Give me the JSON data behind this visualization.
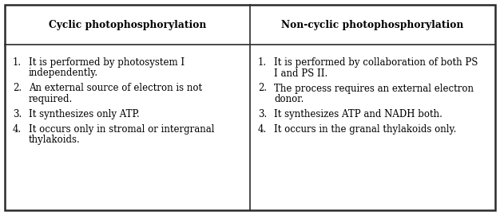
{
  "col1_header": "Cyclic photophosphorylation",
  "col2_header": "Non-cyclic photophosphorylation",
  "col1_items": [
    {
      "num": "1.",
      "line1": "It is performed by photosystem I",
      "line2": "independently."
    },
    {
      "num": "2.",
      "line1": "An external source of electron is not",
      "line2": "required."
    },
    {
      "num": "3.",
      "line1": "It synthesizes only ATP.",
      "line2": ""
    },
    {
      "num": "4.",
      "line1": "It occurs only in stromal or intergranal",
      "line2": "thylakoids."
    }
  ],
  "col2_items": [
    {
      "num": "1.",
      "line1": "It is performed by collaboration of both PS",
      "line2": "I and PS II."
    },
    {
      "num": "2.",
      "line1": "The process requires an external electron",
      "line2": "donor."
    },
    {
      "num": "3.",
      "line1": "It synthesizes ATP and NADH both.",
      "line2": ""
    },
    {
      "num": "4.",
      "line1": "It occurs in the granal thylakoids only.",
      "line2": ""
    }
  ],
  "background_color": "#ffffff",
  "border_color": "#2b2b2b",
  "header_font_size": 8.8,
  "body_font_size": 8.5,
  "font_family": "DejaVu Serif",
  "fig_width": 6.26,
  "fig_height": 2.7,
  "dpi": 100
}
